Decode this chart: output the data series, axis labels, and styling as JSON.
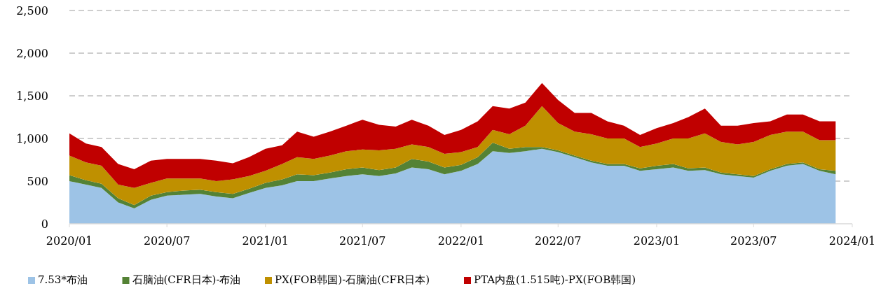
{
  "chart_data": {
    "type": "area",
    "stacked": true,
    "x": [
      "2020-01",
      "2020-02",
      "2020-03",
      "2020-04",
      "2020-05",
      "2020-06",
      "2020-07",
      "2020-08",
      "2020-09",
      "2020-10",
      "2020-11",
      "2020-12",
      "2021-01",
      "2021-02",
      "2021-03",
      "2021-04",
      "2021-05",
      "2021-06",
      "2021-07",
      "2021-08",
      "2021-09",
      "2021-10",
      "2021-11",
      "2021-12",
      "2022-01",
      "2022-02",
      "2022-03",
      "2022-04",
      "2022-05",
      "2022-06",
      "2022-07",
      "2022-08",
      "2022-09",
      "2022-10",
      "2022-11",
      "2022-12",
      "2023-01",
      "2023-02",
      "2023-03",
      "2023-04",
      "2023-05",
      "2023-06",
      "2023-07",
      "2023-08",
      "2023-09",
      "2023-10",
      "2023-11",
      "2023-12"
    ],
    "series": [
      {
        "name": "7.53*布油",
        "color": "#9dc3e6",
        "values": [
          500,
          460,
          420,
          250,
          180,
          280,
          330,
          340,
          350,
          320,
          300,
          360,
          420,
          450,
          500,
          500,
          530,
          560,
          580,
          560,
          590,
          660,
          640,
          580,
          620,
          700,
          850,
          830,
          850,
          880,
          840,
          780,
          720,
          680,
          680,
          620,
          640,
          660,
          620,
          630,
          580,
          560,
          540,
          620,
          680,
          700,
          620,
          580
        ]
      },
      {
        "name": "石脑油(CFR日本)-布油",
        "color": "#548235",
        "values": [
          70,
          50,
          50,
          50,
          40,
          50,
          40,
          50,
          50,
          50,
          50,
          50,
          60,
          70,
          80,
          70,
          70,
          80,
          80,
          70,
          70,
          100,
          90,
          80,
          70,
          80,
          100,
          50,
          50,
          20,
          20,
          20,
          20,
          20,
          20,
          30,
          40,
          40,
          30,
          30,
          20,
          20,
          20,
          20,
          20,
          20,
          20,
          40
        ]
      },
      {
        "name": "PX(FOB韩国)-石脑油(CFR日本)",
        "color": "#bf9000",
        "values": [
          230,
          210,
          210,
          160,
          200,
          150,
          160,
          140,
          130,
          130,
          170,
          150,
          140,
          180,
          200,
          190,
          200,
          210,
          210,
          230,
          220,
          170,
          170,
          160,
          150,
          120,
          150,
          170,
          250,
          480,
          320,
          280,
          310,
          300,
          300,
          250,
          260,
          300,
          350,
          400,
          360,
          350,
          400,
          400,
          380,
          360,
          340,
          360
        ]
      },
      {
        "name": "PTA内盘(1.515吨)-PX(FOB韩国)",
        "color": "#c00000",
        "values": [
          260,
          220,
          220,
          240,
          220,
          260,
          230,
          230,
          230,
          240,
          190,
          220,
          260,
          220,
          300,
          260,
          280,
          300,
          350,
          300,
          260,
          290,
          250,
          220,
          260,
          300,
          280,
          300,
          270,
          270,
          270,
          220,
          250,
          200,
          150,
          140,
          180,
          180,
          250,
          290,
          190,
          220,
          220,
          160,
          200,
          200,
          220,
          220
        ]
      }
    ],
    "xlim": [
      "2020-01",
      "2024-01"
    ],
    "xticks": [
      {
        "value": "2020-01",
        "label": "2020/01"
      },
      {
        "value": "2020-07",
        "label": "2020/07"
      },
      {
        "value": "2021-01",
        "label": "2021/01"
      },
      {
        "value": "2021-07",
        "label": "2021/07"
      },
      {
        "value": "2022-01",
        "label": "2022/01"
      },
      {
        "value": "2022-07",
        "label": "2022/07"
      },
      {
        "value": "2023-01",
        "label": "2023/01"
      },
      {
        "value": "2023-07",
        "label": "2023/07"
      },
      {
        "value": "2024-01",
        "label": "2024/01"
      }
    ],
    "ylim": [
      0,
      2500
    ],
    "yticks": [
      0,
      500,
      {
        "value": 1000,
        "label": "1,000"
      },
      {
        "value": 1500,
        "label": "1,500"
      },
      {
        "value": 2000,
        "label": "2,000"
      },
      {
        "value": 2500,
        "label": "2,500"
      }
    ],
    "grid": "y",
    "legend": "bottom"
  }
}
